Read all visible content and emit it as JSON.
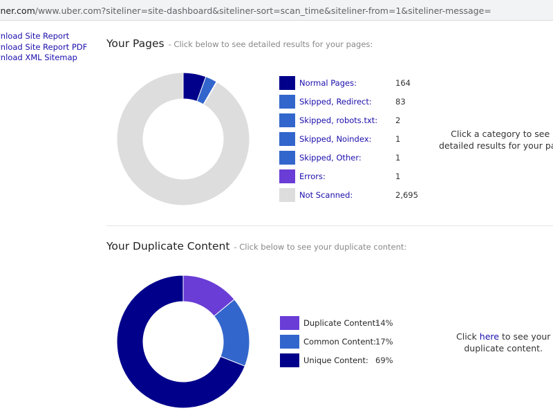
{
  "url": {
    "host": "iner.com",
    "rest": "/www.uber.com?siteliner=site-dashboard&siteliner-sort=scan_time&siteliner-from=1&siteliner-message="
  },
  "sidebar": {
    "links": [
      {
        "label": "vnload Site Report"
      },
      {
        "label": "vnload Site Report PDF"
      },
      {
        "label": "vnload XML Sitemap"
      }
    ]
  },
  "your_pages": {
    "title": "Your Pages",
    "subtitle": "- Click below to see detailed results for your pages:",
    "legend": [
      {
        "label": "Normal Pages:",
        "value": "164",
        "n": 164,
        "color": "#00008b"
      },
      {
        "label": "Skipped, Redirect:",
        "value": "83",
        "n": 83,
        "color": "#3366cc"
      },
      {
        "label": "Skipped, robots.txt:",
        "value": "2",
        "n": 2,
        "color": "#3366cc"
      },
      {
        "label": "Skipped, Noindex:",
        "value": "1",
        "n": 1,
        "color": "#3366cc"
      },
      {
        "label": "Skipped, Other:",
        "value": "1",
        "n": 1,
        "color": "#3366cc"
      },
      {
        "label": "Errors:",
        "value": "1",
        "n": 1,
        "color": "#6a3dd6"
      },
      {
        "label": "Not Scanned:",
        "value": "2,695",
        "n": 2695,
        "color": "#dddddd"
      }
    ],
    "hint_line1": "Click a category to see",
    "hint_line2": "detailed results for your pag"
  },
  "duplicate_content": {
    "title": "Your Duplicate Content",
    "subtitle": "- Click below to see your duplicate content:",
    "legend": [
      {
        "label": "Duplicate Content:",
        "value": "14%",
        "pct": 14,
        "color": "#6a3dd6"
      },
      {
        "label": "Common Content:",
        "value": "17%",
        "pct": 17,
        "color": "#3366cc"
      },
      {
        "label": "Unique Content:",
        "value": "69%",
        "pct": 69,
        "color": "#00008b"
      }
    ],
    "hint_prefix": "Click",
    "hint_link": "here",
    "hint_suffix": "to see your",
    "hint_line2": "duplicate content."
  }
}
